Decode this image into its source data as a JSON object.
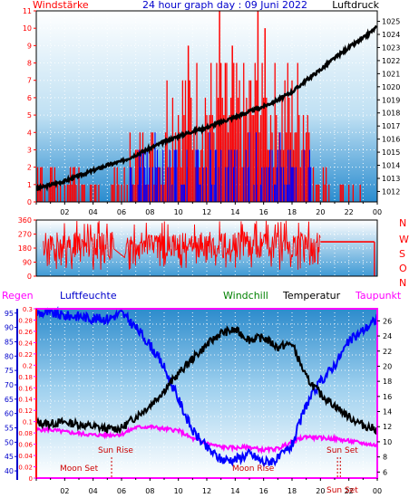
{
  "header": {
    "left_label": "Windstärke",
    "title": "24 hour graph day : 09 Juni 2022",
    "right_label": "Luftdruck"
  },
  "colors": {
    "wind": "#ff0000",
    "gust_dir": "#0000ff",
    "pressure": "#000000",
    "humidity": "#0000ff",
    "temperature": "#000000",
    "dewpoint": "#ff00ff",
    "rain_axis": "#ff0000",
    "windchill": "#008000",
    "sun_moon": "#cc0000",
    "axis_blue": "#0000cc"
  },
  "chart_data": [
    {
      "type": "bar",
      "name": "wind-pressure",
      "x_ticks": [
        "02",
        "04",
        "06",
        "08",
        "10",
        "12",
        "14",
        "16",
        "18",
        "20",
        "22",
        "00"
      ],
      "x_range_hours": [
        0,
        24
      ],
      "y_left_label": "Windstärke",
      "y_left_ticks": [
        "0",
        "1",
        "2",
        "3",
        "4",
        "5",
        "6",
        "7",
        "8",
        "9",
        "10",
        "11"
      ],
      "y_left_range": [
        0,
        11
      ],
      "y_right_label": "Luftdruck",
      "y_right_ticks": [
        "1012",
        "1013",
        "1014",
        "1015",
        "1016",
        "1017",
        "1018",
        "1019",
        "1020",
        "1021",
        "1022",
        "1023",
        "1024",
        "1025"
      ],
      "y_right_range": [
        1011.2,
        1025.8
      ],
      "pressure": {
        "hours": [
          0,
          1,
          2,
          3,
          4,
          5,
          6,
          7,
          8,
          9,
          10,
          11,
          12,
          13,
          14,
          15,
          16,
          17,
          18,
          19,
          20,
          21,
          22,
          23,
          24
        ],
        "values": [
          1012.2,
          1012.5,
          1012.8,
          1013.2,
          1013.6,
          1014.0,
          1014.3,
          1014.8,
          1015.3,
          1015.8,
          1016.2,
          1016.6,
          1016.9,
          1017.3,
          1017.7,
          1018.1,
          1018.5,
          1019.0,
          1019.6,
          1020.5,
          1021.3,
          1022.2,
          1023.0,
          1023.7,
          1024.6
        ]
      }
    },
    {
      "type": "scatter",
      "name": "wind-direction",
      "y_ticks": [
        "0",
        "90",
        "180",
        "270",
        "360"
      ],
      "y_range": [
        0,
        360
      ],
      "direction_labels": [
        "N",
        "W",
        "S",
        "O",
        "N"
      ]
    },
    {
      "type": "line",
      "name": "temperature-humidity",
      "legend": [
        "Regen",
        "Luftfeuchte",
        "Windchill",
        "Temperatur",
        "Taupunkt"
      ],
      "humidity_ticks": [
        "40",
        "45",
        "50",
        "55",
        "60",
        "65",
        "70",
        "75",
        "80",
        "85",
        "90",
        "95"
      ],
      "humidity_range": [
        37.5,
        96.5
      ],
      "rain_ticks": [
        "0",
        "0.02",
        "0.04",
        "0.06",
        "0.08",
        "0.1",
        "0.12",
        "0.14",
        "0.16",
        "0.18",
        "0.2",
        "0.22",
        "0.24",
        "0.26",
        "0.28",
        "0.3"
      ],
      "rain_range": [
        0,
        0.3
      ],
      "temp_ticks": [
        "6",
        "8",
        "10",
        "12",
        "14",
        "16",
        "18",
        "20",
        "22",
        "24",
        "26"
      ],
      "temp_range": [
        5.2,
        27.6
      ],
      "temperature": {
        "hours": [
          0,
          1,
          2,
          3,
          4,
          5,
          6,
          7,
          8,
          9,
          10,
          11,
          12,
          13,
          14,
          15,
          16,
          17,
          18,
          19,
          20,
          21,
          22,
          23,
          24
        ],
        "values": [
          12.5,
          12.4,
          12.6,
          12.3,
          12.0,
          11.7,
          11.8,
          13.3,
          14.8,
          16.8,
          19.0,
          21.0,
          22.8,
          24.4,
          24.8,
          23.5,
          23.8,
          22.5,
          23.0,
          18.5,
          16.3,
          14.8,
          13.3,
          12.2,
          11.6
        ]
      },
      "humidity": {
        "hours": [
          0,
          1,
          2,
          3,
          4,
          5,
          6,
          7,
          8,
          9,
          10,
          11,
          12,
          13,
          14,
          15,
          16,
          17,
          18,
          19,
          20,
          21,
          22,
          23,
          24
        ],
        "values": [
          95,
          95,
          94,
          94,
          93,
          93,
          95,
          90,
          84,
          76,
          65,
          54,
          48,
          44,
          44,
          46,
          43,
          44,
          49,
          63,
          71,
          77,
          85,
          89,
          93
        ]
      },
      "dewpoint": {
        "hours": [
          0,
          1,
          2,
          3,
          4,
          5,
          6,
          7,
          8,
          9,
          10,
          11,
          12,
          13,
          14,
          15,
          16,
          17,
          18,
          19,
          20,
          21,
          22,
          23,
          24
        ],
        "values": [
          11.6,
          11.6,
          11.3,
          11.1,
          10.9,
          10.9,
          11.0,
          11.9,
          12.0,
          11.7,
          11.5,
          10.4,
          9.8,
          9.3,
          9.2,
          9.3,
          8.9,
          9.1,
          10.0,
          10.7,
          10.5,
          10.4,
          10.1,
          9.8,
          9.5
        ]
      },
      "annotations": [
        {
          "text": "Sun Rise",
          "hour": 5.3
        },
        {
          "text": "Sun Set",
          "hour": 21.4
        },
        {
          "text": "Moon Set",
          "hour": 2.6
        },
        {
          "text": "Moon Rise",
          "hour": 14.8
        },
        {
          "text": "Sun Set",
          "hour": 21.0
        }
      ]
    }
  ]
}
